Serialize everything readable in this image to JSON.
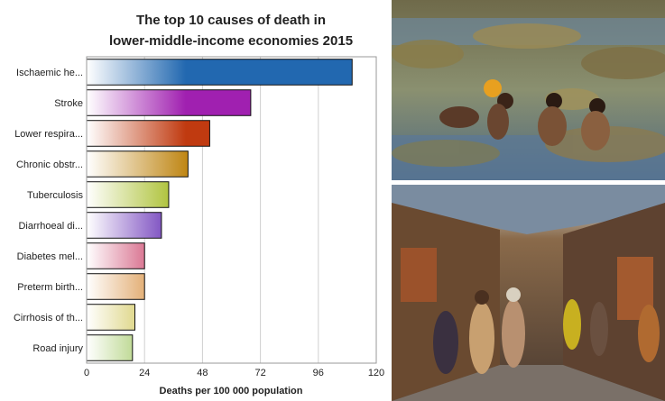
{
  "chart_data": {
    "type": "bar",
    "orientation": "horizontal",
    "title": "The top 10 causes of death in lower-middle-income economies 2015",
    "title_lines": [
      "The top 10 causes of death in",
      "lower-middle-income economies 2015"
    ],
    "xlabel": "Deaths per 100 000 population",
    "ylabel": "",
    "categories": [
      "Ischaemic he...",
      "Stroke",
      "Lower respira...",
      "Chronic obstr...",
      "Tuberculosis",
      "Diarrhoeal di...",
      "Diabetes mel...",
      "Preterm birth...",
      "Cirrhosis of th...",
      "Road injury"
    ],
    "values": [
      110,
      68,
      51,
      42,
      34,
      31,
      24,
      24,
      20,
      19
    ],
    "colors": [
      "#2268b0",
      "#a020b0",
      "#c03a10",
      "#c08818",
      "#a0b818",
      "#5a20b0",
      "#c01848",
      "#d07818",
      "#c0b018",
      "#78b020"
    ],
    "xlim": [
      0,
      120
    ],
    "xticks": [
      0,
      24,
      48,
      72,
      96,
      120
    ],
    "grid": true,
    "legend": "none"
  },
  "photos": {
    "top_icon": "photo-people-bathing-in-polluted-river",
    "bottom_icon": "photo-crowded-market-street"
  }
}
